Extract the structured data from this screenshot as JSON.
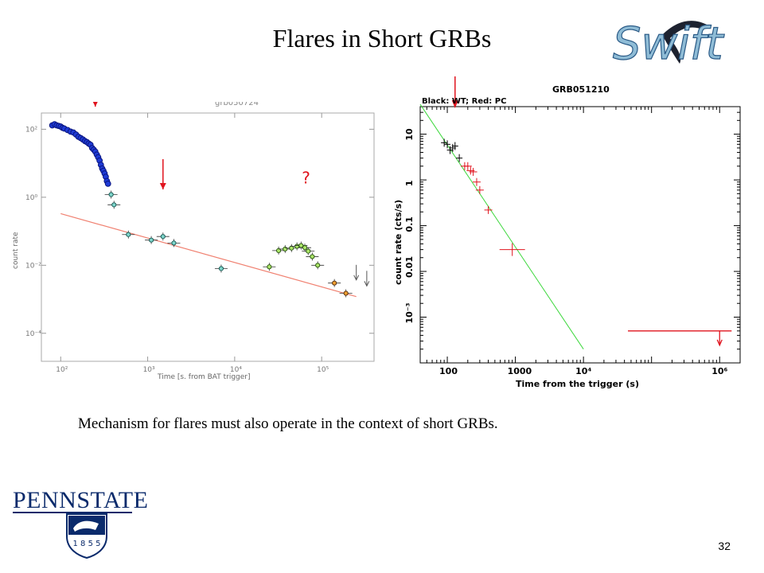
{
  "slide": {
    "title": "Flares in Short GRBs",
    "caption": "Mechanism for flares must also operate in the context of short GRBs.",
    "page_number": "32",
    "logo_penn_state": "PENNSTATE",
    "logo_penn_state_year": "1 8 5 5",
    "logo_swift": "Swift"
  },
  "chart_data": [
    {
      "type": "scatter",
      "title": "grb050724",
      "xlabel": "Time [s. from BAT trigger]",
      "ylabel": "count rate",
      "xscale": "log",
      "yscale": "log",
      "xlim": [
        60,
        400000
      ],
      "ylim": [
        1.5e-05,
        300
      ],
      "xticks": [
        100,
        1000,
        10000,
        100000
      ],
      "xtick_labels": [
        "10²",
        "10³",
        "10⁴",
        "10⁵"
      ],
      "yticks": [
        100,
        1,
        0.01,
        0.0001
      ],
      "ytick_labels": [
        "10²",
        "10⁰",
        "10⁻²",
        "10⁻⁴"
      ],
      "question_mark": "?",
      "question_mark_at": {
        "x": 70000,
        "y": 3.5
      },
      "red_arrows_at_time": [
        250,
        1500
      ],
      "series": [
        {
          "style": "blue-dense",
          "x": [
            80,
            85,
            90,
            95,
            100,
            105,
            110,
            120,
            130,
            140,
            150,
            160,
            170,
            180,
            190,
            200,
            210,
            220,
            230,
            240,
            250,
            260,
            270,
            280,
            290,
            300,
            310,
            320,
            330,
            340,
            350
          ],
          "y": [
            130,
            140,
            130,
            125,
            120,
            110,
            105,
            95,
            85,
            80,
            70,
            60,
            55,
            50,
            45,
            42,
            38,
            35,
            28,
            25,
            22,
            18,
            15,
            12,
            9,
            7,
            6,
            5,
            4,
            3,
            2.5
          ]
        },
        {
          "style": "teal",
          "x": [
            380,
            410,
            600,
            1100,
            1500,
            2000,
            7000
          ],
          "y": [
            1.2,
            0.6,
            0.08,
            0.055,
            0.07,
            0.045,
            0.008
          ]
        },
        {
          "style": "green",
          "x": [
            25000,
            32000,
            38000,
            45000,
            52000,
            58000,
            64000,
            70000,
            78000,
            90000
          ],
          "y": [
            0.009,
            0.027,
            0.03,
            0.032,
            0.036,
            0.038,
            0.033,
            0.026,
            0.018,
            0.01
          ]
        },
        {
          "style": "orange",
          "x": [
            140000,
            190000
          ],
          "y": [
            0.003,
            0.0015
          ]
        }
      ],
      "upper_limits": [
        {
          "x": 250000,
          "y": 0.006
        },
        {
          "x": 330000,
          "y": 0.004
        }
      ],
      "fit_line": {
        "x": [
          100,
          250000
        ],
        "y": [
          0.33,
          0.0012
        ]
      }
    },
    {
      "type": "scatter",
      "title": "GRB051210",
      "subtitle": "Black: WT; Red: PC",
      "xlabel": "Time from the trigger (s)",
      "ylabel": "count rate (cts/s)",
      "xscale": "log",
      "yscale": "log",
      "xlim": [
        40,
        2000000
      ],
      "ylim": [
        0.0001,
        40
      ],
      "xticks": [
        100,
        1000,
        10000,
        1000000
      ],
      "xtick_labels": [
        "100",
        "1000",
        "10⁴",
        "10⁶"
      ],
      "yticks": [
        10,
        1,
        0.1,
        0.01,
        0.001
      ],
      "ytick_labels": [
        "10",
        "1",
        "0.1",
        "0.01",
        "10⁻³"
      ],
      "red_arrow_at_time": 130,
      "series": [
        {
          "name": "WT",
          "color": "#000000",
          "x": [
            90,
            100,
            110,
            120,
            130,
            150
          ],
          "y": [
            6.5,
            6,
            4.5,
            5,
            5.5,
            3
          ]
        },
        {
          "name": "PC",
          "color": "#e0141e",
          "x": [
            180,
            200,
            220,
            240,
            270,
            300,
            400,
            900
          ],
          "y": [
            2,
            2,
            1.6,
            1.5,
            0.9,
            0.6,
            0.22,
            0.03
          ]
        }
      ],
      "upper_limit": {
        "x": 1000000,
        "y": 0.0005,
        "x_range": [
          45000,
          1500000
        ]
      },
      "fit_line": {
        "x": [
          40,
          10000
        ],
        "y": [
          45,
          0.0002
        ]
      }
    }
  ]
}
